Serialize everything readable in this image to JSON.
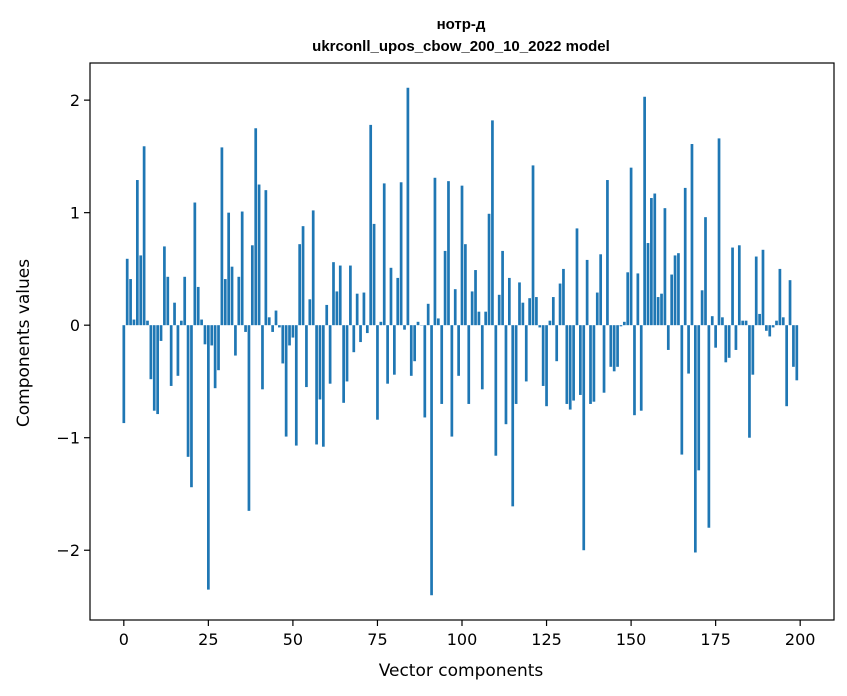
{
  "chart_data": {
    "type": "bar",
    "title": "нотр-д",
    "subtitle": "ukrconll_upos_cbow_200_10_2022 model",
    "xlabel": "Vector components",
    "ylabel": "Components values",
    "xlim": [
      -10,
      210
    ],
    "ylim": [
      -2.62,
      2.33
    ],
    "xticks": [
      0,
      25,
      50,
      75,
      100,
      125,
      150,
      175,
      200
    ],
    "xtick_labels": [
      "0",
      "25",
      "50",
      "75",
      "100",
      "125",
      "150",
      "175",
      "200"
    ],
    "yticks": [
      -2,
      -1,
      0,
      1,
      2
    ],
    "ytick_labels": [
      "−2",
      "−1",
      "0",
      "1",
      "2"
    ],
    "grid": false,
    "bar_color": "#1f77b4",
    "x": [
      0,
      1,
      2,
      3,
      4,
      5,
      6,
      7,
      8,
      9,
      10,
      11,
      12,
      13,
      14,
      15,
      16,
      17,
      18,
      19,
      20,
      21,
      22,
      23,
      24,
      25,
      26,
      27,
      28,
      29,
      30,
      31,
      32,
      33,
      34,
      35,
      36,
      37,
      38,
      39,
      40,
      41,
      42,
      43,
      44,
      45,
      46,
      47,
      48,
      49,
      50,
      51,
      52,
      53,
      54,
      55,
      56,
      57,
      58,
      59,
      60,
      61,
      62,
      63,
      64,
      65,
      66,
      67,
      68,
      69,
      70,
      71,
      72,
      73,
      74,
      75,
      76,
      77,
      78,
      79,
      80,
      81,
      82,
      83,
      84,
      85,
      86,
      87,
      88,
      89,
      90,
      91,
      92,
      93,
      94,
      95,
      96,
      97,
      98,
      99,
      100,
      101,
      102,
      103,
      104,
      105,
      106,
      107,
      108,
      109,
      110,
      111,
      112,
      113,
      114,
      115,
      116,
      117,
      118,
      119,
      120,
      121,
      122,
      123,
      124,
      125,
      126,
      127,
      128,
      129,
      130,
      131,
      132,
      133,
      134,
      135,
      136,
      137,
      138,
      139,
      140,
      141,
      142,
      143,
      144,
      145,
      146,
      147,
      148,
      149,
      150,
      151,
      152,
      153,
      154,
      155,
      156,
      157,
      158,
      159,
      160,
      161,
      162,
      163,
      164,
      165,
      166,
      167,
      168,
      169,
      170,
      171,
      172,
      173,
      174,
      175,
      176,
      177,
      178,
      179,
      180,
      181,
      182,
      183,
      184,
      185,
      186,
      187,
      188,
      189,
      190,
      191,
      192,
      193,
      194,
      195,
      196,
      197,
      198,
      199
    ],
    "values": [
      -0.87,
      0.59,
      0.41,
      0.05,
      1.29,
      0.62,
      1.59,
      0.04,
      -0.48,
      -0.76,
      -0.79,
      -0.14,
      0.7,
      0.43,
      -0.54,
      0.2,
      -0.45,
      0.04,
      0.43,
      -1.17,
      -1.44,
      1.09,
      0.34,
      0.05,
      -0.17,
      -2.35,
      -0.18,
      -0.56,
      -0.4,
      1.58,
      0.41,
      1.0,
      0.52,
      -0.27,
      0.43,
      1.01,
      -0.06,
      -1.65,
      0.71,
      1.75,
      1.25,
      -0.57,
      1.2,
      0.07,
      -0.06,
      0.13,
      -0.02,
      -0.34,
      -0.99,
      -0.18,
      -0.11,
      -1.07,
      0.72,
      0.88,
      -0.55,
      0.23,
      1.02,
      -1.06,
      -0.66,
      -1.08,
      0.18,
      -0.52,
      0.56,
      0.3,
      0.53,
      -0.69,
      -0.5,
      0.53,
      -0.24,
      0.28,
      -0.15,
      0.29,
      -0.07,
      1.78,
      0.9,
      -0.84,
      0.03,
      1.26,
      -0.52,
      0.51,
      -0.44,
      0.42,
      1.27,
      -0.04,
      2.11,
      -0.45,
      -0.32,
      0.03,
      0.0,
      -0.82,
      0.19,
      -2.4,
      1.31,
      0.06,
      -0.7,
      0.66,
      1.28,
      -0.99,
      0.32,
      -0.45,
      1.24,
      0.72,
      -0.7,
      0.3,
      0.49,
      0.12,
      -0.57,
      0.12,
      0.99,
      1.82,
      -1.16,
      0.27,
      0.66,
      -0.88,
      0.42,
      -1.61,
      -0.7,
      0.38,
      0.2,
      -0.5,
      0.24,
      1.42,
      0.25,
      -0.02,
      -0.54,
      -0.72,
      0.04,
      0.25,
      -0.32,
      0.37,
      0.5,
      -0.7,
      -0.75,
      -0.67,
      0.86,
      -0.62,
      -2.0,
      0.58,
      -0.7,
      -0.68,
      0.29,
      0.63,
      -0.6,
      1.29,
      -0.37,
      -0.41,
      -0.37,
      -0.01,
      0.03,
      0.47,
      1.4,
      -0.8,
      0.46,
      -0.76,
      2.03,
      0.73,
      1.13,
      1.17,
      0.25,
      0.28,
      1.04,
      -0.22,
      0.45,
      0.62,
      0.64,
      -1.15,
      1.22,
      -0.43,
      1.61,
      -2.02,
      -1.29,
      0.31,
      0.96,
      -1.8,
      0.08,
      -0.2,
      1.66,
      0.07,
      -0.33,
      -0.29,
      0.69,
      -0.22,
      0.71,
      0.04,
      0.04,
      -1.0,
      -0.44,
      0.61,
      0.1,
      0.67,
      -0.05,
      -0.1,
      -0.02,
      0.04,
      0.5,
      0.07,
      -0.72,
      0.4,
      -0.37,
      -0.49
    ]
  }
}
